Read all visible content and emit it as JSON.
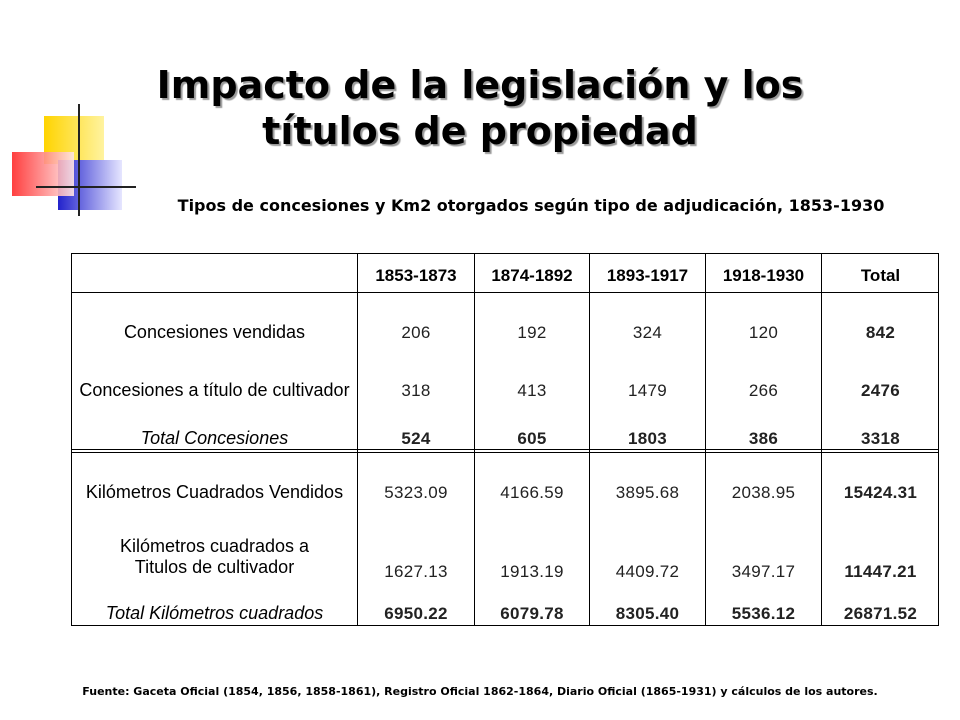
{
  "title": "Impacto de la legislación y los títulos de propiedad",
  "subtitle": "Tipos de concesiones y Km2 otorgados según tipo de adjudicación, 1853-1930",
  "table": {
    "headers": [
      "1853-1873",
      "1874-1892",
      "1893-1917",
      "1918-1930",
      "Total"
    ],
    "rows": [
      {
        "label": "Concesiones vendidas",
        "values": [
          "206",
          "192",
          "324",
          "120",
          "842"
        ]
      },
      {
        "label": "Concesiones a título de cultivador",
        "values": [
          "318",
          "413",
          "1479",
          "266",
          "2476"
        ]
      },
      {
        "label": "Total Concesiones",
        "values": [
          "524",
          "605",
          "1803",
          "386",
          "3318"
        ]
      },
      {
        "label": "Kilómetros Cuadrados Vendidos",
        "values": [
          "5323.09",
          "4166.59",
          "3895.68",
          "2038.95",
          "15424.31"
        ]
      },
      {
        "label": "Kilómetros cuadrados a Titulos de cultivador",
        "values": [
          "1627.13",
          "1913.19",
          "4409.72",
          "3497.17",
          "11447.21"
        ]
      },
      {
        "label": "Total Kilómetros cuadrados",
        "values": [
          "6950.22",
          "6079.78",
          "8305.40",
          "5536.12",
          "26871.52"
        ]
      }
    ]
  },
  "footer": "Fuente: Gaceta Oficial (1854, 1856, 1858-1861), Registro Oficial 1862-1864, Diario Oficial (1865-1931) y cálculos de los autores.",
  "colors": {
    "accent_yellow": "#ffd200",
    "accent_blue": "#3a3ad8",
    "accent_red": "#ff3b3b"
  }
}
